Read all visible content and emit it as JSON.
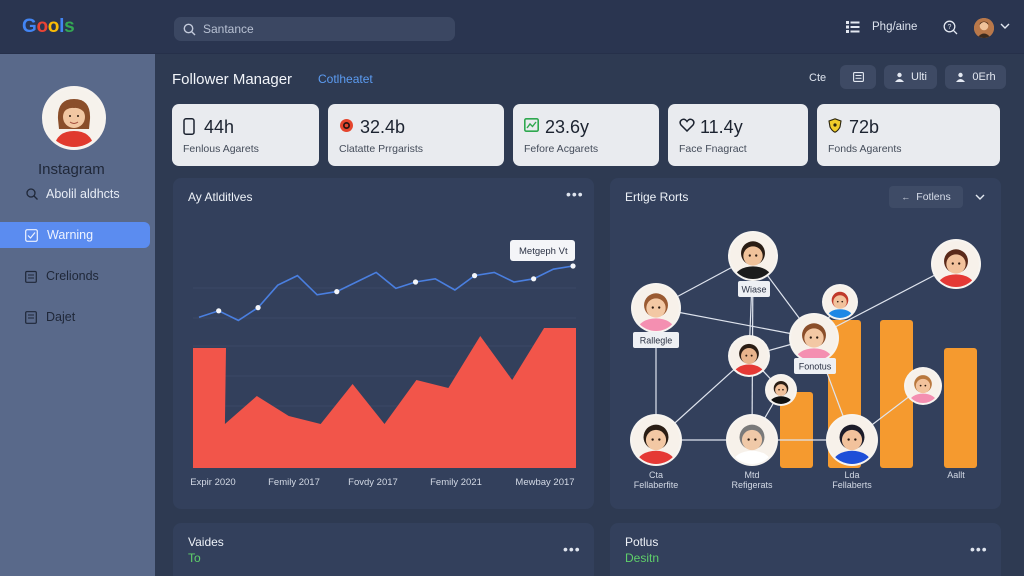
{
  "app": {
    "logo_letters": [
      {
        "ch": "G",
        "color": "#4285f4"
      },
      {
        "ch": "o",
        "color": "#ea4335"
      },
      {
        "ch": "o",
        "color": "#fbbc05"
      },
      {
        "ch": "l",
        "color": "#4285f4"
      },
      {
        "ch": "s",
        "color": "#34a853"
      }
    ]
  },
  "search": {
    "placeholder": "Santance"
  },
  "topbar": {
    "profile_label": "Phg/aine"
  },
  "sidebar": {
    "title": "Instagram",
    "subtitle": "Abolil aldhcts",
    "items": [
      {
        "label": "Warning",
        "icon": "checklist-icon",
        "active": true
      },
      {
        "label": "Crelionds",
        "icon": "clipboard-icon",
        "active": false
      },
      {
        "label": "Dajet",
        "icon": "document-icon",
        "active": false
      }
    ]
  },
  "header": {
    "title": "Follower Manager",
    "tab": "Cotlheatet",
    "right_text": "Cte",
    "buttons": [
      {
        "label": "",
        "icon": "list-icon"
      },
      {
        "label": "Ulti",
        "icon": "users-icon"
      },
      {
        "label": "0Erh",
        "icon": "user-group-icon"
      }
    ]
  },
  "stats": [
    {
      "value": "44h",
      "label": "Fenlous Agarets",
      "icon": "phone-icon",
      "color": "#1c2330"
    },
    {
      "value": "32.4b",
      "label": "Clatatte Prrgarists",
      "icon": "target-icon",
      "color": "#e5452d"
    },
    {
      "value": "23.6y",
      "label": "Fefore Acgarets",
      "icon": "image-icon",
      "color": "#2fa84f"
    },
    {
      "value": "11.4y",
      "label": "Face Fnagract",
      "icon": "heart-icon",
      "color": "#1c2330"
    },
    {
      "value": "72b",
      "label": "Fonds Agarents",
      "icon": "shield-icon",
      "color": "#e0b81a"
    }
  ],
  "panel_left": {
    "title": "Ay Atlditlves",
    "tooltip": "Metgeph Vt"
  },
  "panel_right": {
    "title": "Ertige Rorts",
    "filter_label": "Fotlens",
    "node_labels": [
      "Wiase",
      "Rallegle",
      "Fonotus"
    ],
    "bottom_labels": [
      {
        "line1": "Cta",
        "line2": "Fellaberfite"
      },
      {
        "line1": "Mtd",
        "line2": "Refigerats"
      },
      {
        "line1": "Lda",
        "line2": "Fellaberts"
      },
      {
        "line1": "Aallt",
        "line2": ""
      }
    ]
  },
  "bottom_left": {
    "title": "Vaides",
    "subtitle": "To"
  },
  "bottom_right": {
    "title": "Potlus",
    "subtitle": "Desitn"
  },
  "chart_data": {
    "type": "area",
    "categories": [
      "Expir 2020",
      "Femily 2017",
      "Fovdy 2017",
      "Femily 2021",
      "Mewbay 2017"
    ],
    "line_series": {
      "values": [
        0.38,
        0.42,
        0.36,
        0.44,
        0.58,
        0.64,
        0.52,
        0.54,
        0.6,
        0.66,
        0.56,
        0.6,
        0.62,
        0.55,
        0.64,
        0.66,
        0.6,
        0.62,
        0.68,
        0.7
      ]
    },
    "area_series": {
      "values": [
        0.6,
        0.22,
        0.36,
        0.26,
        0.22,
        0.42,
        0.22,
        0.44,
        0.4,
        0.66,
        0.44,
        0.7,
        0.7
      ]
    },
    "colors": {
      "line": "#4a7fe0",
      "area": "#f2554a"
    }
  }
}
